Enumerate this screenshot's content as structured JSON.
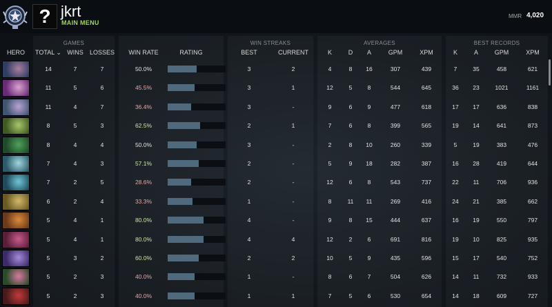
{
  "header": {
    "username": "jkrt",
    "main_menu": "MAIN MENU",
    "mmr_label": "MMR",
    "mmr_value": "4,020",
    "avatar_glyph": "?"
  },
  "groups": {
    "games": "GAMES",
    "win_streaks": "WIN STREAKS",
    "averages": "AVERAGES",
    "best_records": "BEST RECORDS"
  },
  "columns": {
    "hero": "HERO",
    "total": "TOTAL ⌄",
    "wins": "WINS",
    "losses": "LOSSES",
    "win_rate": "WIN RATE",
    "rating": "RATING",
    "best": "BEST",
    "current": "CURRENT",
    "k": "K",
    "d": "D",
    "a": "A",
    "gpm": "GPM",
    "xpm": "XPM",
    "rk": "K",
    "ra": "A",
    "rgpm": "GPM",
    "rxpm": "XPM"
  },
  "rows": [
    {
      "total": "14",
      "wins": "7",
      "losses": "7",
      "win_rate": "50.0%",
      "rating": 0.5,
      "best": "3",
      "current": "2",
      "k": "4",
      "d": "8",
      "a": "16",
      "gpm": "307",
      "xpm": "439",
      "rk": "7",
      "ra": "35",
      "rgpm": "458",
      "rxpm": "621",
      "colors": [
        "#2e3d63",
        "#a97f9b"
      ]
    },
    {
      "total": "11",
      "wins": "5",
      "losses": "6",
      "win_rate": "45.5%",
      "rating": 0.46,
      "best": "3",
      "current": "1",
      "k": "12",
      "d": "5",
      "a": "8",
      "gpm": "544",
      "xpm": "645",
      "rk": "36",
      "ra": "23",
      "rgpm": "1021",
      "rxpm": "1161",
      "colors": [
        "#6a2a78",
        "#d9a3cf"
      ]
    },
    {
      "total": "11",
      "wins": "4",
      "losses": "7",
      "win_rate": "36.4%",
      "rating": 0.4,
      "best": "3",
      "current": "-",
      "k": "9",
      "d": "6",
      "a": "9",
      "gpm": "477",
      "xpm": "618",
      "rk": "17",
      "ra": "17",
      "rgpm": "636",
      "rxpm": "838",
      "colors": [
        "#3f5570",
        "#b9a3d6"
      ]
    },
    {
      "total": "8",
      "wins": "5",
      "losses": "3",
      "win_rate": "62.5%",
      "rating": 0.56,
      "best": "2",
      "current": "1",
      "k": "7",
      "d": "6",
      "a": "8",
      "gpm": "399",
      "xpm": "565",
      "rk": "19",
      "ra": "14",
      "rgpm": "641",
      "rxpm": "873",
      "colors": [
        "#3f5a22",
        "#a9c56a"
      ]
    },
    {
      "total": "8",
      "wins": "4",
      "losses": "4",
      "win_rate": "50.0%",
      "rating": 0.5,
      "best": "3",
      "current": "-",
      "k": "2",
      "d": "8",
      "a": "10",
      "gpm": "260",
      "xpm": "339",
      "rk": "5",
      "ra": "19",
      "rgpm": "383",
      "rxpm": "476",
      "colors": [
        "#1e4a2a",
        "#4fa05a"
      ]
    },
    {
      "total": "7",
      "wins": "4",
      "losses": "3",
      "win_rate": "57.1%",
      "rating": 0.54,
      "best": "2",
      "current": "-",
      "k": "5",
      "d": "9",
      "a": "18",
      "gpm": "282",
      "xpm": "387",
      "rk": "16",
      "ra": "28",
      "rgpm": "419",
      "rxpm": "644",
      "colors": [
        "#2d5a68",
        "#9fd6e0"
      ]
    },
    {
      "total": "7",
      "wins": "2",
      "losses": "5",
      "win_rate": "28.6%",
      "rating": 0.4,
      "best": "2",
      "current": "-",
      "k": "12",
      "d": "6",
      "a": "8",
      "gpm": "543",
      "xpm": "737",
      "rk": "22",
      "ra": "11",
      "rgpm": "706",
      "rxpm": "936",
      "colors": [
        "#1e4a5a",
        "#6fc6d8"
      ]
    },
    {
      "total": "6",
      "wins": "2",
      "losses": "4",
      "win_rate": "33.3%",
      "rating": 0.43,
      "best": "1",
      "current": "-",
      "k": "8",
      "d": "11",
      "a": "11",
      "gpm": "269",
      "xpm": "416",
      "rk": "24",
      "ra": "21",
      "rgpm": "385",
      "rxpm": "662",
      "colors": [
        "#6a5a22",
        "#d2b86a"
      ]
    },
    {
      "total": "5",
      "wins": "4",
      "losses": "1",
      "win_rate": "80.0%",
      "rating": 0.62,
      "best": "4",
      "current": "-",
      "k": "9",
      "d": "8",
      "a": "15",
      "gpm": "444",
      "xpm": "637",
      "rk": "16",
      "ra": "19",
      "rgpm": "550",
      "rxpm": "797",
      "colors": [
        "#6a3a1a",
        "#d98a3a"
      ]
    },
    {
      "total": "5",
      "wins": "4",
      "losses": "1",
      "win_rate": "80.0%",
      "rating": 0.62,
      "best": "4",
      "current": "4",
      "k": "12",
      "d": "2",
      "a": "6",
      "gpm": "691",
      "xpm": "816",
      "rk": "19",
      "ra": "10",
      "rgpm": "825",
      "rxpm": "935",
      "colors": [
        "#5a1e3a",
        "#c85a8a"
      ]
    },
    {
      "total": "5",
      "wins": "3",
      "losses": "2",
      "win_rate": "60.0%",
      "rating": 0.54,
      "best": "2",
      "current": "2",
      "k": "10",
      "d": "5",
      "a": "9",
      "gpm": "435",
      "xpm": "596",
      "rk": "15",
      "ra": "17",
      "rgpm": "540",
      "rxpm": "752",
      "colors": [
        "#3a2a6a",
        "#a58ad9"
      ]
    },
    {
      "total": "5",
      "wins": "2",
      "losses": "3",
      "win_rate": "40.0%",
      "rating": 0.46,
      "best": "1",
      "current": "-",
      "k": "8",
      "d": "6",
      "a": "7",
      "gpm": "504",
      "xpm": "626",
      "rk": "14",
      "ra": "11",
      "rgpm": "732",
      "rxpm": "933",
      "colors": [
        "#2a4a2a",
        "#d97aa0"
      ]
    },
    {
      "total": "5",
      "wins": "2",
      "losses": "3",
      "win_rate": "40.0%",
      "rating": 0.46,
      "best": "1",
      "current": "1",
      "k": "7",
      "d": "5",
      "a": "6",
      "gpm": "530",
      "xpm": "654",
      "rk": "14",
      "ra": "18",
      "rgpm": "609",
      "rxpm": "727",
      "colors": [
        "#4a1a1a",
        "#c23a3a"
      ]
    }
  ]
}
